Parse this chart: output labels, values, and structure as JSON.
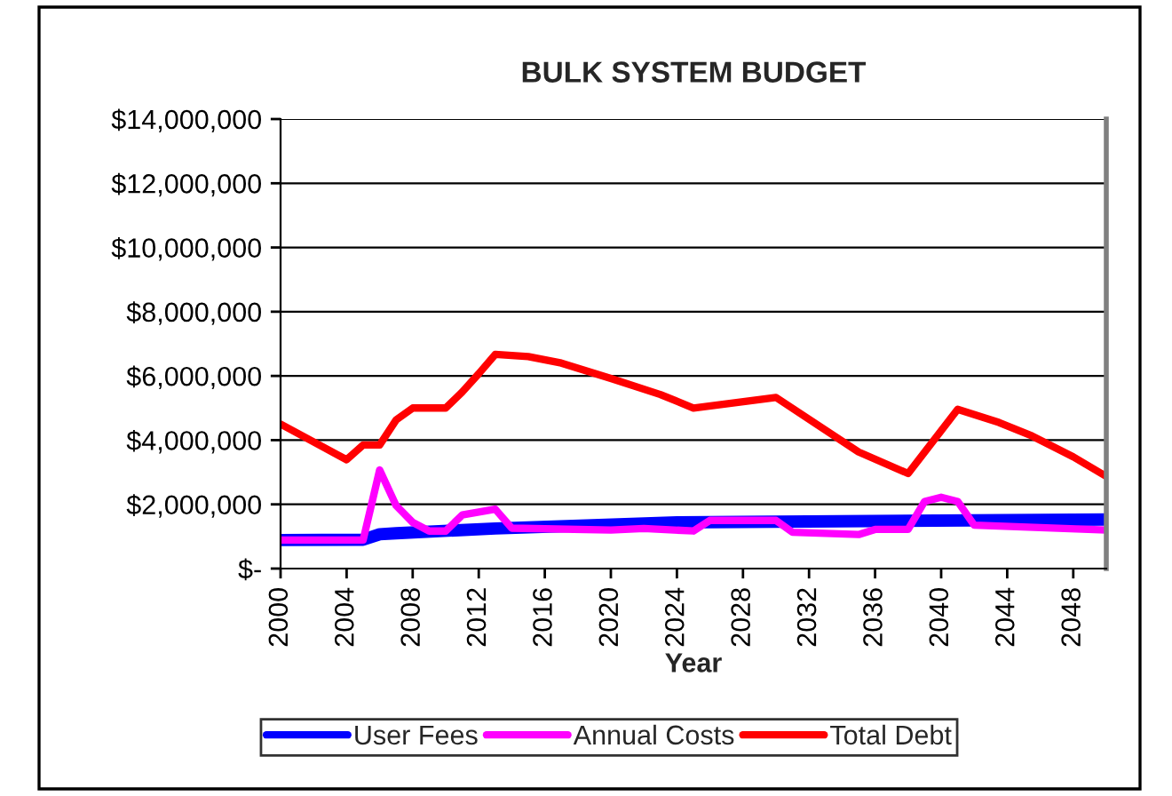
{
  "chart_data": {
    "type": "line",
    "title": "BULK SYSTEM BUDGET",
    "xlabel": "Year",
    "xlim": [
      2000,
      2050
    ],
    "xticks": [
      2000,
      2004,
      2008,
      2012,
      2016,
      2020,
      2024,
      2028,
      2032,
      2036,
      2040,
      2044,
      2048
    ],
    "ylim": [
      0,
      14000000
    ],
    "yticks": [
      {
        "value": 0,
        "label": "$-"
      },
      {
        "value": 2000000,
        "label": "$2,000,000"
      },
      {
        "value": 4000000,
        "label": "$4,000,000"
      },
      {
        "value": 6000000,
        "label": "$6,000,000"
      },
      {
        "value": 8000000,
        "label": "$8,000,000"
      },
      {
        "value": 10000000,
        "label": "$10,000,000"
      },
      {
        "value": 12000000,
        "label": "$12,000,000"
      },
      {
        "value": 14000000,
        "label": "$14,000,000"
      }
    ],
    "grid": "y",
    "legend": "bottom",
    "marker": "none",
    "line_style": "solid",
    "series": [
      {
        "name": "User Fees",
        "color": "#0000ff",
        "x": [
          2000,
          2005,
          2006,
          2007,
          2013,
          2024,
          2050
        ],
        "values": [
          890000,
          900000,
          1070000,
          1100000,
          1250000,
          1440000,
          1530000
        ]
      },
      {
        "name": "Annual Costs",
        "color": "#ff00ff",
        "x": [
          2000,
          2005,
          2006,
          2007,
          2008,
          2009,
          2010,
          2011,
          2013,
          2014,
          2020,
          2022,
          2025,
          2026,
          2030,
          2031,
          2035,
          2036,
          2038,
          2039,
          2040,
          2041,
          2042,
          2050
        ],
        "values": [
          890000,
          890000,
          3070000,
          1960000,
          1440000,
          1170000,
          1170000,
          1670000,
          1850000,
          1260000,
          1200000,
          1250000,
          1170000,
          1500000,
          1500000,
          1130000,
          1060000,
          1220000,
          1220000,
          2090000,
          2220000,
          2090000,
          1350000,
          1200000
        ]
      },
      {
        "name": "Total Debt",
        "color": "#ff0000",
        "x": [
          2000,
          2004,
          2005,
          2006,
          2007,
          2008,
          2010,
          2011,
          2012,
          2013,
          2015,
          2017,
          2020,
          2023,
          2025,
          2030,
          2035,
          2038,
          2041,
          2043.5,
          2045.5,
          2048,
          2050
        ],
        "values": [
          4500000,
          3390000,
          3850000,
          3850000,
          4630000,
          5000000,
          5000000,
          5500000,
          6070000,
          6670000,
          6600000,
          6400000,
          5920000,
          5420000,
          5000000,
          5330000,
          3630000,
          2960000,
          4960000,
          4550000,
          4130000,
          3480000,
          2870000
        ]
      }
    ]
  }
}
